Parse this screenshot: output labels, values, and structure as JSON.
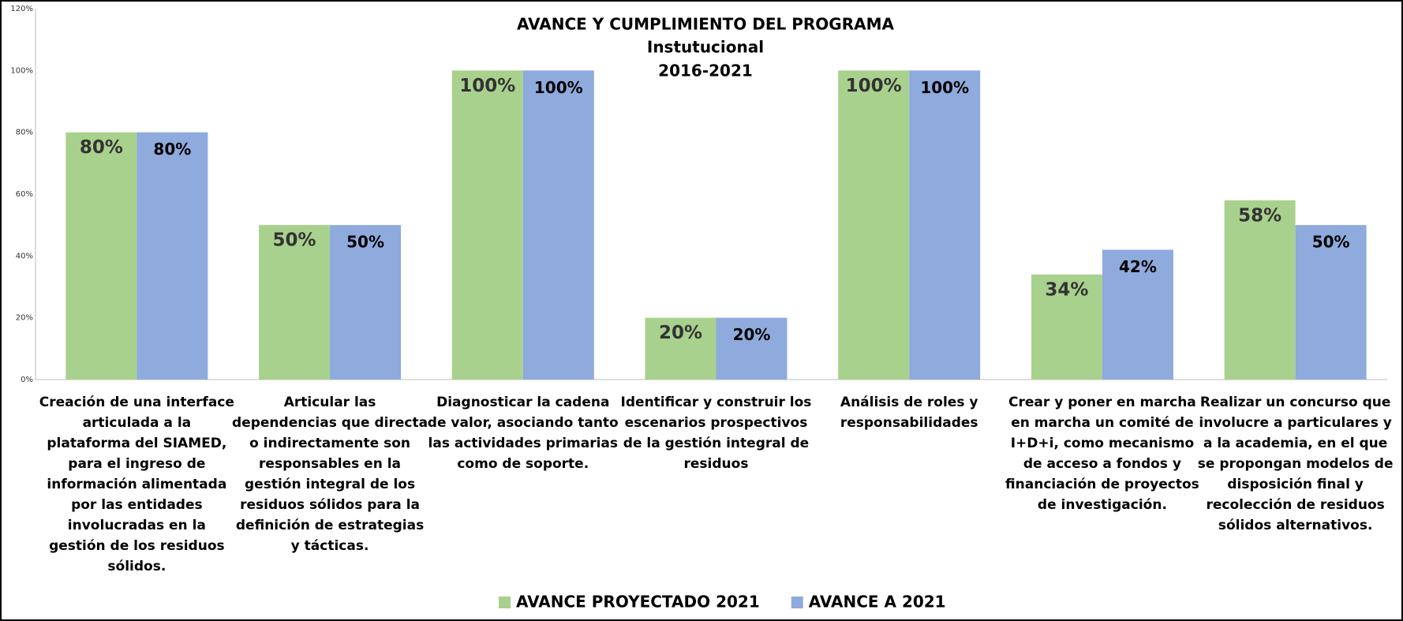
{
  "chart_data": {
    "type": "bar",
    "title": "AVANCE Y CUMPLIMIENTO DEL PROGRAMA",
    "subtitle": [
      "Instutucional",
      "2016-2021"
    ],
    "categories": [
      "Creación de una interface articulada a la plataforma del SIAMED, para el ingreso de información alimentada por las entidades involucradas en la gestión de los residuos sólidos.",
      "Articular las dependencias que directa o indirectamente son responsables en la gestión integral de los residuos sólidos para la definición de estrategias y tácticas.",
      "Diagnosticar la cadena de valor, asociando tanto las actividades primarias como de soporte.",
      "Identificar y construir los escenarios prospectivos de la gestión integral de residuos",
      "Análisis de roles y responsabilidades",
      "Crear y poner en marcha en marcha un comité de I+D+i, como mecanismo de acceso a fondos y financiación de proyectos de investigación.",
      "Realizar un concurso que involucre a particulares y a la academia, en el que se propongan modelos de disposición final y recolección de residuos sólidos alternativos."
    ],
    "series": [
      {
        "name": "AVANCE PROYECTADO 2021",
        "color": "#a9d18e",
        "values": [
          80,
          50,
          100,
          20,
          100,
          34,
          58
        ],
        "value_labels": [
          "80%",
          "50%",
          "100%",
          "20%",
          "100%",
          "34%",
          "58%"
        ]
      },
      {
        "name": "AVANCE A 2021",
        "color": "#8faadc",
        "values": [
          80,
          50,
          100,
          20,
          100,
          42,
          50
        ],
        "value_labels": [
          "80%",
          "50%",
          "100%",
          "20%",
          "100%",
          "42%",
          "50%"
        ]
      }
    ],
    "ylim": [
      0,
      120
    ],
    "yticks": [
      {
        "value": 0,
        "label": "0%"
      },
      {
        "value": 20,
        "label": "20%"
      },
      {
        "value": 40,
        "label": "40%"
      },
      {
        "value": 60,
        "label": "60%"
      },
      {
        "value": 80,
        "label": "80%"
      },
      {
        "value": 100,
        "label": "100%"
      },
      {
        "value": 120,
        "label": "120%"
      }
    ],
    "grid": false,
    "legend": "bottom"
  }
}
